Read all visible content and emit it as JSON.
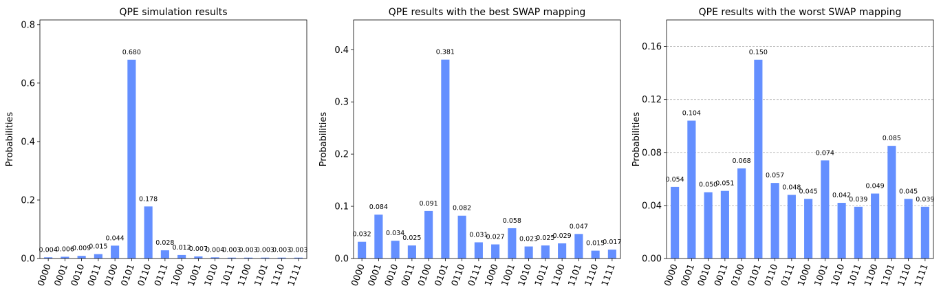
{
  "chart_data": [
    {
      "type": "bar",
      "title": "QPE simulation results",
      "ylabel": "Probabilities",
      "categories": [
        "0000",
        "0001",
        "0010",
        "0011",
        "0100",
        "0101",
        "0110",
        "0111",
        "1000",
        "1001",
        "1010",
        "1011",
        "1100",
        "1101",
        "1110",
        "1111"
      ],
      "values": [
        0.004,
        0.006,
        0.009,
        0.015,
        0.044,
        0.68,
        0.178,
        0.028,
        0.012,
        0.007,
        0.004,
        0.003,
        0.003,
        0.003,
        0.003,
        0.003
      ],
      "value_labels": [
        "0.004",
        "0.006",
        "0.009",
        "0.015",
        "0.044",
        "0.680",
        "0.178",
        "0.028",
        "0.012",
        "0.007",
        "0.004",
        "0.003",
        "0.003",
        "0.003",
        "0.003",
        "0.003"
      ],
      "yticks": [
        0.0,
        0.2,
        0.4,
        0.6,
        0.8
      ],
      "ytick_labels": [
        "0.0",
        "0.2",
        "0.4",
        "0.6",
        "0.8"
      ],
      "ylim": [
        0,
        0.816
      ],
      "grid": false,
      "bar_color": "#648fff"
    },
    {
      "type": "bar",
      "title": "QPE results with the best SWAP mapping",
      "ylabel": "Probabilities",
      "categories": [
        "0000",
        "0001",
        "0010",
        "0011",
        "0100",
        "0101",
        "0110",
        "0111",
        "1000",
        "1001",
        "1010",
        "1011",
        "1100",
        "1101",
        "1110",
        "1111"
      ],
      "values": [
        0.032,
        0.084,
        0.034,
        0.025,
        0.091,
        0.381,
        0.082,
        0.031,
        0.027,
        0.058,
        0.023,
        0.025,
        0.029,
        0.047,
        0.015,
        0.017
      ],
      "value_labels": [
        "0.032",
        "0.084",
        "0.034",
        "0.025",
        "0.091",
        "0.381",
        "0.082",
        "0.031",
        "0.027",
        "0.058",
        "0.023",
        "0.025",
        "0.029",
        "0.047",
        "0.015",
        "0.017"
      ],
      "yticks": [
        0.0,
        0.1,
        0.2,
        0.3,
        0.4
      ],
      "ytick_labels": [
        "0.0",
        "0.1",
        "0.2",
        "0.3",
        "0.4"
      ],
      "ylim": [
        0,
        0.457
      ],
      "grid": false,
      "bar_color": "#648fff"
    },
    {
      "type": "bar",
      "title": "QPE results with the worst SWAP mapping",
      "ylabel": "Probabilities",
      "categories": [
        "0000",
        "0001",
        "0010",
        "0011",
        "0100",
        "0101",
        "0110",
        "0111",
        "1000",
        "1001",
        "1010",
        "1011",
        "1100",
        "1101",
        "1110",
        "1111"
      ],
      "values": [
        0.054,
        0.104,
        0.05,
        0.051,
        0.068,
        0.15,
        0.057,
        0.048,
        0.045,
        0.074,
        0.042,
        0.039,
        0.049,
        0.085,
        0.045,
        0.039
      ],
      "value_labels": [
        "0.054",
        "0.104",
        "0.050",
        "0.051",
        "0.068",
        "0.150",
        "0.057",
        "0.048",
        "0.045",
        "0.074",
        "0.042",
        "0.039",
        "0.049",
        "0.085",
        "0.045",
        "0.039"
      ],
      "yticks": [
        0.0,
        0.04,
        0.08,
        0.12,
        0.16
      ],
      "ytick_labels": [
        "0.00",
        "0.04",
        "0.08",
        "0.12",
        "0.16"
      ],
      "ylim": [
        0,
        0.18
      ],
      "grid": true,
      "bar_color": "#648fff"
    }
  ]
}
